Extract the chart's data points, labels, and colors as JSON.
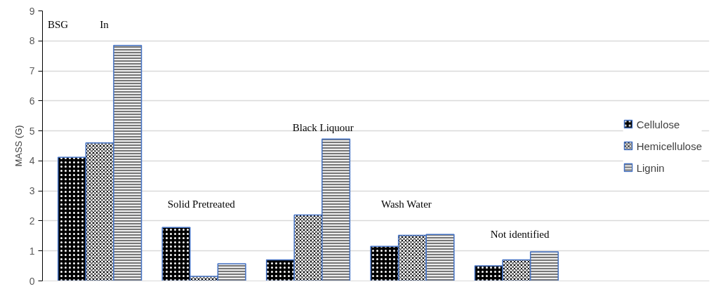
{
  "chart_data": {
    "type": "bar",
    "ylabel": "MASS (G)",
    "categories": [
      null,
      null,
      null,
      null,
      null
    ],
    "series": [
      {
        "name": "Cellulose",
        "color": "#000000",
        "values": [
          4.12,
          1.78,
          0.7,
          1.15,
          0.5
        ]
      },
      {
        "name": "Hemicellulose",
        "color": "#eeeeee",
        "values": [
          4.6,
          0.15,
          2.2,
          1.52,
          0.7
        ]
      },
      {
        "name": "Lignin",
        "color": "#eeeeee",
        "values": [
          7.85,
          0.57,
          4.73,
          1.55,
          0.97
        ]
      }
    ],
    "ylim": [
      0,
      9
    ],
    "yticks": [
      0,
      1,
      2,
      3,
      4,
      5,
      6,
      7,
      8,
      9
    ],
    "grid": "y",
    "legend": "right",
    "annotations": [
      "BSG",
      "In",
      "Solid Pretreated",
      "Black Liquour",
      "Wash Water",
      "Not identified"
    ]
  }
}
